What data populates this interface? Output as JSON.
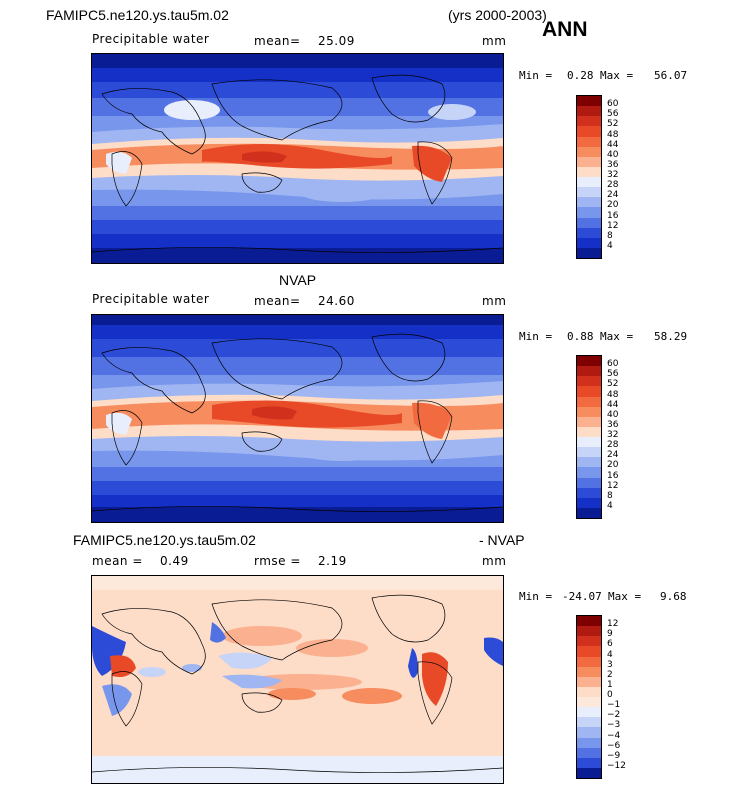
{
  "header": {
    "case_name": "FAMIPC5.ne120.ys.tau5m.02",
    "years": "(yrs 2000-2003)",
    "season": "ANN"
  },
  "panels": [
    {
      "title": "",
      "variable": "Precipitable water",
      "mean_label": "mean=",
      "mean_value": "25.09",
      "units": "mm",
      "min_label": "Min =",
      "min_value": "0.28",
      "max_label": "Max =",
      "max_value": "56.07",
      "colorbar_levels": [
        "60",
        "56",
        "52",
        "48",
        "44",
        "40",
        "36",
        "32",
        "28",
        "24",
        "20",
        "16",
        "12",
        "8",
        "4"
      ]
    },
    {
      "title": "NVAP",
      "variable": "Precipitable water",
      "mean_label": "mean=",
      "mean_value": "24.60",
      "units": "mm",
      "min_label": "Min =",
      "min_value": "0.88",
      "max_label": "Max =",
      "max_value": "58.29",
      "colorbar_levels": [
        "60",
        "56",
        "52",
        "48",
        "44",
        "40",
        "36",
        "32",
        "28",
        "24",
        "20",
        "16",
        "12",
        "8",
        "4"
      ]
    },
    {
      "title_left": "FAMIPC5.ne120.ys.tau5m.02",
      "title_right": "- NVAP",
      "mean_label": "mean =",
      "mean_value": "0.49",
      "rmse_label": "rmse =",
      "rmse_value": "2.19",
      "units": "mm",
      "min_label": "Min =",
      "min_value": "-24.07",
      "max_label": "Max =",
      "max_value": "9.68",
      "colorbar_levels": [
        "12",
        "9",
        "6",
        "4",
        "3",
        "2",
        "1",
        "0",
        "−1",
        "−2",
        "−3",
        "−4",
        "−6",
        "−9",
        "−12"
      ]
    }
  ],
  "colors": {
    "abs_scale": [
      "#7f0000",
      "#b01a10",
      "#d0301c",
      "#e84a28",
      "#f26a40",
      "#f78c5e",
      "#fbb090",
      "#fddcc8",
      "#e8eefc",
      "#c6d4f8",
      "#9fb6f2",
      "#7896ec",
      "#5272e4",
      "#2c4cd8",
      "#1430c6",
      "#0a1c94"
    ],
    "diff_scale": [
      "#7f0000",
      "#b01a10",
      "#d0301c",
      "#e84a28",
      "#f26a40",
      "#f78c5e",
      "#fbb090",
      "#fddcc8",
      "#fde9dc",
      "#e8eefc",
      "#c6d4f8",
      "#9fb6f2",
      "#7896ec",
      "#5272e4",
      "#2c4cd8",
      "#0a1c94"
    ]
  }
}
